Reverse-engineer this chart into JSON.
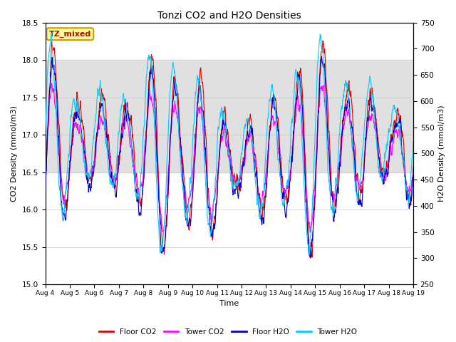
{
  "title": "Tonzi CO2 and H2O Densities",
  "xlabel": "Time",
  "ylabel_left": "CO2 Density (mmol/m3)",
  "ylabel_right": "H2O Density (mmol/m3)",
  "annotation": "TZ_mixed",
  "annotation_color": "#cc0000",
  "annotation_bg": "#ffff99",
  "annotation_border": "#cc9900",
  "xlim": [
    0,
    15
  ],
  "ylim_left": [
    15.0,
    18.5
  ],
  "ylim_right": [
    250,
    750
  ],
  "xtick_positions": [
    0,
    1,
    2,
    3,
    4,
    5,
    6,
    7,
    8,
    9,
    10,
    11,
    12,
    13,
    14,
    15
  ],
  "xtick_labels": [
    "Aug 4",
    "Aug 5",
    "Aug 6",
    "Aug 7",
    "Aug 8",
    "Aug 9",
    "Aug 10",
    "Aug 11",
    "Aug 12",
    "Aug 13",
    "Aug 14",
    "Aug 15",
    "Aug 16",
    "Aug 17",
    "Aug 18",
    "Aug 19"
  ],
  "yticks_left": [
    15.0,
    15.5,
    16.0,
    16.5,
    17.0,
    17.5,
    18.0,
    18.5
  ],
  "yticks_right": [
    250,
    300,
    350,
    400,
    450,
    500,
    550,
    600,
    650,
    700,
    750
  ],
  "legend_labels": [
    "Floor CO2",
    "Tower CO2",
    "Floor H2O",
    "Tower H2O"
  ],
  "line_colors": [
    "#dd0000",
    "#ff00ff",
    "#0000cc",
    "#00ccff"
  ],
  "shaded_region": [
    16.5,
    18.0
  ],
  "shaded_color": "#e0e0e0",
  "grid_color": "#cccccc",
  "figsize": [
    6.4,
    4.8
  ],
  "dpi": 100
}
